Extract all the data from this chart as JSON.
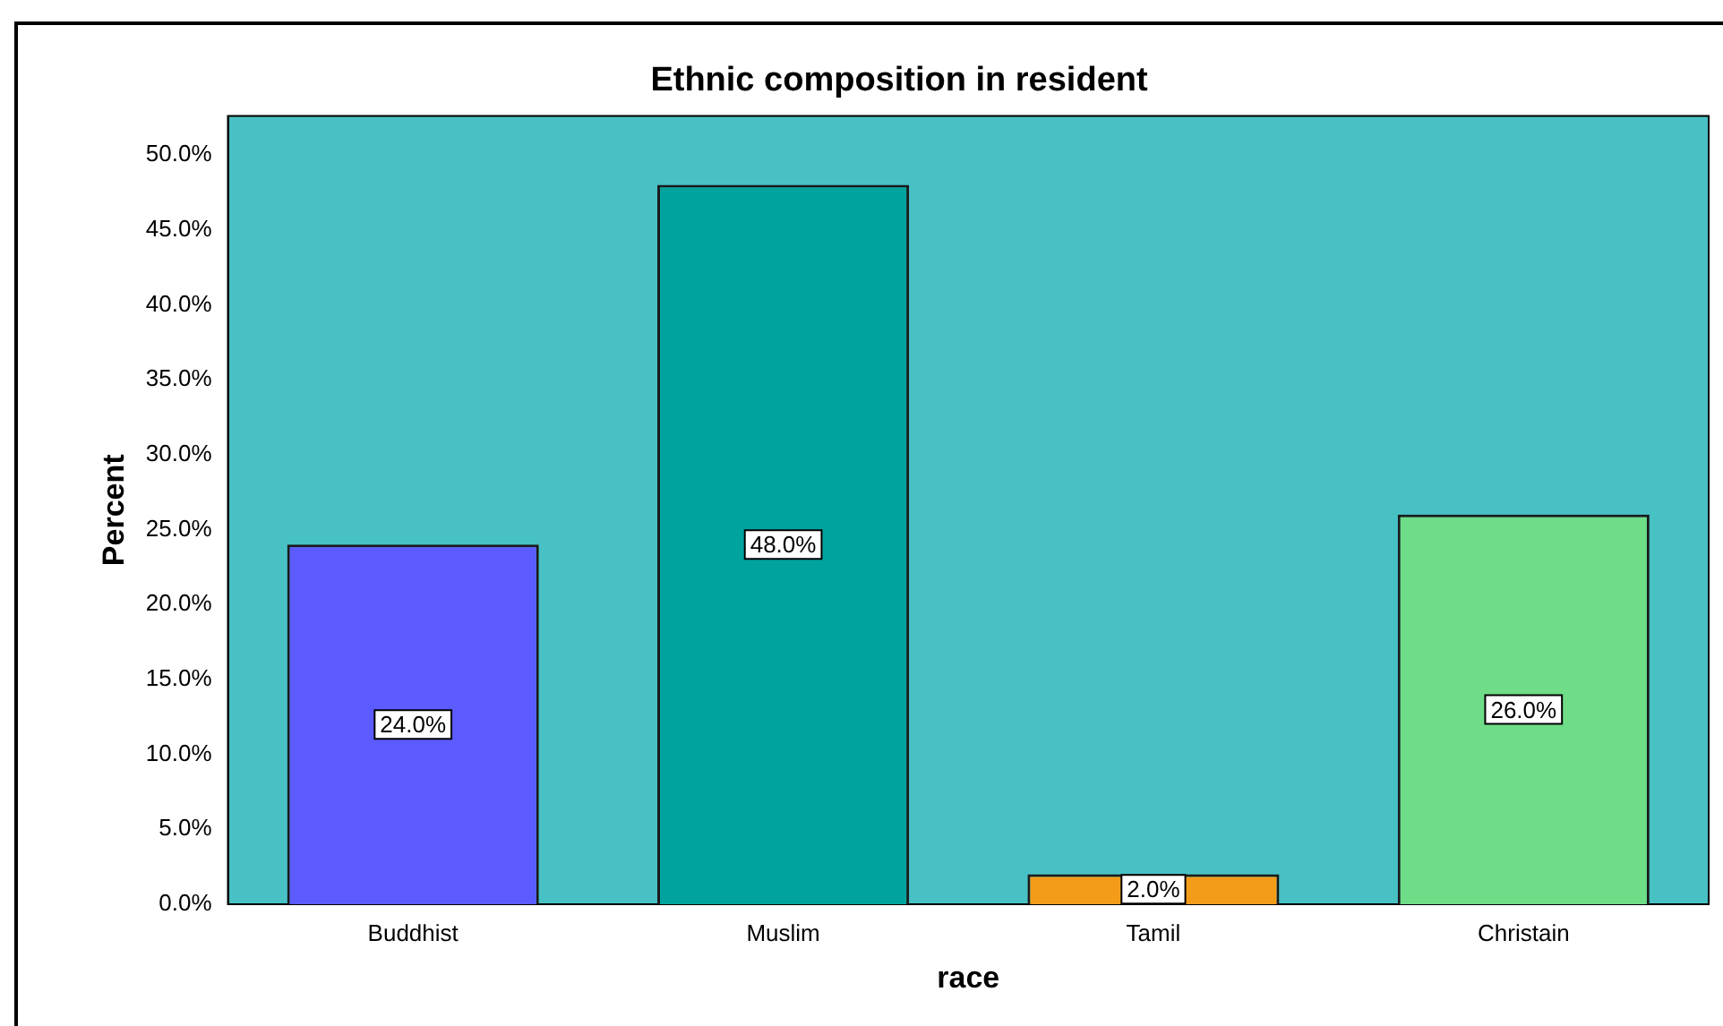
{
  "chart_data": {
    "type": "bar",
    "title": "Ethnic composition in resident",
    "xlabel": "race",
    "ylabel": "Percent",
    "categories": [
      "Buddhist",
      "Muslim",
      "Tamil",
      "Christain"
    ],
    "values": [
      24,
      48,
      2,
      26
    ],
    "colors": [
      "#5b5bff",
      "#00a39e",
      "#f39c1a",
      "#6fdc87"
    ],
    "value_labels": [
      "24.0%",
      "48.0%",
      "2.0%",
      "26.0%"
    ],
    "ylim": [
      0,
      52.6
    ],
    "yticks": [
      {
        "value": 0,
        "label": "0.0%"
      },
      {
        "value": 5,
        "label": "5.0%"
      },
      {
        "value": 10,
        "label": "10.0%"
      },
      {
        "value": 15,
        "label": "15.0%"
      },
      {
        "value": 20,
        "label": "20.0%"
      },
      {
        "value": 25,
        "label": "25.0%"
      },
      {
        "value": 30,
        "label": "30.0%"
      },
      {
        "value": 35,
        "label": "35.0%"
      },
      {
        "value": 40,
        "label": "40.0%"
      },
      {
        "value": 45,
        "label": "45.0%"
      },
      {
        "value": 50,
        "label": "50.0%"
      }
    ],
    "grid": false,
    "legend": false
  }
}
